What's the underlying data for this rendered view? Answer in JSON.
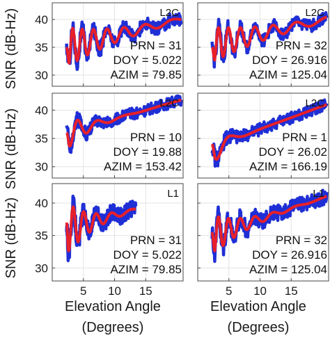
{
  "figure": {
    "ylabel": "SNR (dB-Hz)",
    "xlabel_line1": "Elevation Angle",
    "xlabel_line2": "(Degrees)",
    "colors": {
      "observed": "#1f2fd6",
      "fit": "#e8202a",
      "axes": "#444444"
    }
  },
  "chart_data": [
    {
      "type": "line",
      "signal": "L2C",
      "annotation": {
        "PRN": "PRN = 31",
        "DOY": "DOY = 5.022",
        "AZIM": "AZIM = 79.85"
      },
      "xlim": [
        0,
        21
      ],
      "ylim": [
        28,
        43
      ],
      "xticks": [
        5,
        10,
        15
      ],
      "yticks": [
        30,
        35,
        40
      ],
      "x_range": [
        2.3,
        20.7
      ],
      "start_y": 35,
      "trend_y": [
        35,
        40
      ],
      "osc_amp": 3.6,
      "osc_decay": 0.13,
      "period": 1.25,
      "noise": 1.2,
      "series": [
        {
          "values": "observed"
        },
        {
          "values": "fit"
        }
      ]
    },
    {
      "type": "line",
      "signal": "L2C",
      "annotation": {
        "PRN": "PRN = 32",
        "DOY": "DOY = 26.916",
        "AZIM": "AZIM = 125.04"
      },
      "xlim": [
        0,
        21
      ],
      "ylim": [
        28,
        43
      ],
      "xticks": [
        5,
        10,
        15
      ],
      "yticks": [
        30,
        35,
        40
      ],
      "x_range": [
        2.3,
        20.7
      ],
      "start_y": 35,
      "trend_y": [
        35.5,
        40
      ],
      "osc_amp": 3.2,
      "osc_decay": 0.11,
      "period": 1.3,
      "noise": 1.1
    },
    {
      "type": "line",
      "signal": "L2C",
      "annotation": {
        "PRN": "PRN = 10",
        "DOY": "DOY = 19.88",
        "AZIM": "AZIM = 153.42"
      },
      "xlim": [
        0,
        21
      ],
      "ylim": [
        28,
        43
      ],
      "xticks": [
        5,
        10,
        15
      ],
      "yticks": [
        30,
        35,
        40
      ],
      "x_range": [
        2.3,
        20.7
      ],
      "start_y": 36,
      "trend_y": [
        36,
        41.8
      ],
      "osc_amp": 3.0,
      "osc_decay": 0.32,
      "period": 2.2,
      "noise": 1.0
    },
    {
      "type": "line",
      "signal": "L2C",
      "annotation": {
        "PRN": "PRN = 1",
        "DOY": "DOY = 26.02",
        "AZIM": "AZIM = 166.19"
      },
      "xlim": [
        0,
        21
      ],
      "ylim": [
        28,
        43
      ],
      "xticks": [
        5,
        10,
        15
      ],
      "yticks": [
        30,
        35,
        40
      ],
      "x_range": [
        2.3,
        20.7
      ],
      "start_y": 34,
      "trend_y": [
        33.5,
        41
      ],
      "osc_amp": 4.0,
      "osc_decay": 0.55,
      "period": 3.5,
      "noise": 1.0
    },
    {
      "type": "line",
      "signal": "L1",
      "annotation": {
        "PRN": "PRN = 31",
        "DOY": "DOY = 5.022",
        "AZIM": "AZIM = 79.85"
      },
      "xlim": [
        0,
        21
      ],
      "ylim": [
        28,
        43
      ],
      "xticks": [
        5,
        10,
        15
      ],
      "yticks": [
        30,
        35,
        40
      ],
      "x_range": [
        2.3,
        13.4
      ],
      "start_y": 37,
      "trend_y": [
        36,
        39
      ],
      "osc_amp": 4.2,
      "osc_decay": 0.28,
      "period": 1.35,
      "noise": 1.2
    },
    {
      "type": "line",
      "signal": "L1",
      "annotation": {
        "PRN": "PRN = 32",
        "DOY": "DOY = 26.916",
        "AZIM": "AZIM = 125.04"
      },
      "xlim": [
        0,
        21
      ],
      "ylim": [
        28,
        43
      ],
      "xticks": [
        5,
        10,
        15
      ],
      "yticks": [
        30,
        35,
        40
      ],
      "x_range": [
        2.3,
        20.7
      ],
      "start_y": 35.5,
      "trend_y": [
        35,
        41
      ],
      "osc_amp": 3.2,
      "osc_decay": 0.22,
      "period": 1.3,
      "noise": 1.2
    }
  ]
}
